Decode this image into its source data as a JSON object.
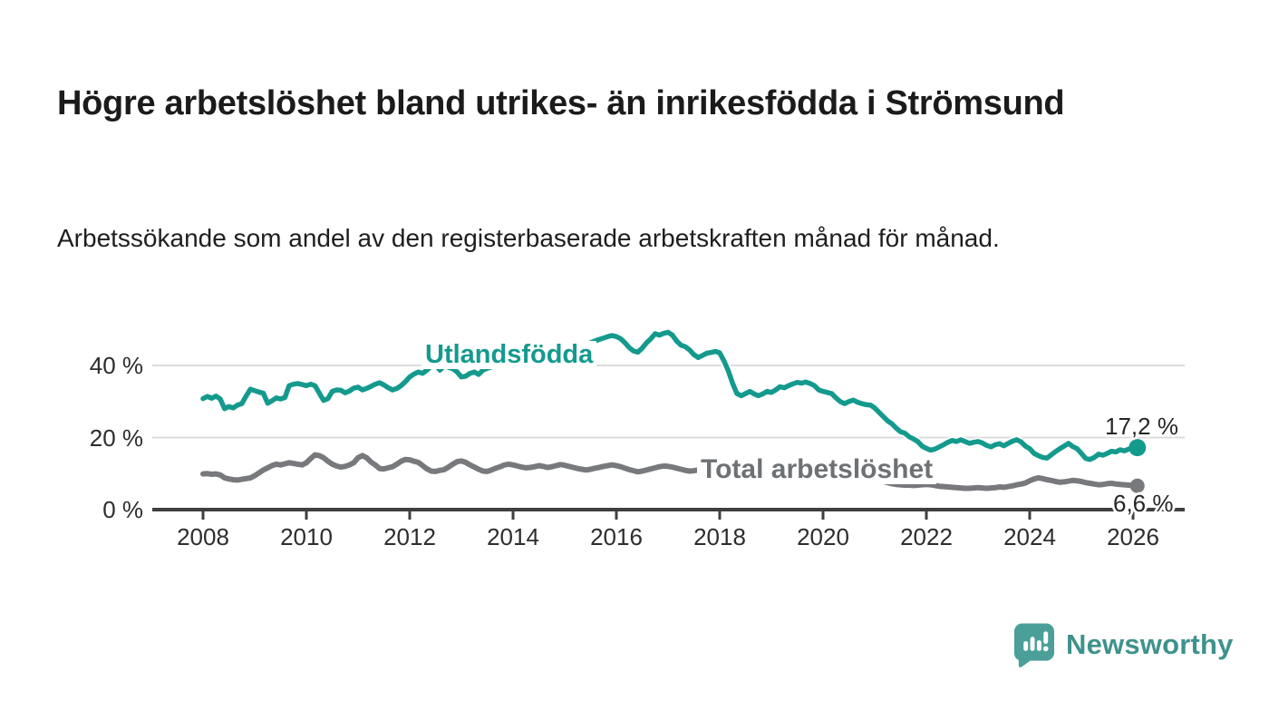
{
  "header": {
    "title": "Högre arbetslöshet bland utrikes- än inrikesfödda i Strömsund",
    "subtitle": "Arbetssökande som andel av den registerbaserade arbetskraften månad för månad."
  },
  "footer": {
    "brand": "Newsworthy",
    "logo_icon": "bar-chart-speech-bubble",
    "logo_color": "#4b9f99"
  },
  "chart_data": {
    "type": "line",
    "title": "Högre arbetslöshet bland utrikes- än inrikesfödda i Strömsund",
    "subtitle": "Arbetssökande som andel av den registerbaserade arbetskraften månad för månad.",
    "grid": "horizontal-only",
    "legend_position": "inline-labels",
    "x_start_year": 2008,
    "points_per_year": 12,
    "x_axis_ticks": [
      2008,
      2010,
      2012,
      2014,
      2016,
      2018,
      2020,
      2022,
      2024,
      2026
    ],
    "ylim": [
      0,
      52
    ],
    "y_ticks": [
      {
        "value": 0,
        "label": "0 %"
      },
      {
        "value": 20,
        "label": "20 %"
      },
      {
        "value": 40,
        "label": "40 %"
      }
    ],
    "colors": {
      "grid": "#dcdcdc",
      "axis": "#3f3f3f",
      "text": "#2d2d2d"
    },
    "annotations": {
      "foreign_end": "17,2 %",
      "total_end": "6,6 %"
    },
    "series": [
      {
        "name": "Utlandsfödda",
        "color": "#149a8d",
        "end_value_label": "17,2 %",
        "values": [
          30.8,
          31.4,
          30.9,
          31.5,
          30.7,
          28.0,
          28.6,
          28.2,
          29.0,
          29.4,
          31.5,
          33.4,
          33.0,
          32.6,
          32.3,
          29.5,
          30.2,
          31.0,
          30.7,
          31.1,
          34.4,
          34.8,
          35.0,
          34.7,
          34.4,
          34.8,
          34.4,
          32.3,
          30.3,
          30.8,
          32.8,
          33.2,
          33.1,
          32.4,
          32.9,
          33.7,
          34.0,
          33.2,
          33.6,
          34.2,
          34.8,
          35.2,
          34.6,
          33.8,
          33.2,
          33.6,
          34.4,
          35.5,
          36.8,
          37.6,
          38.2,
          37.8,
          38.7,
          39.9,
          40.3,
          38.7,
          39.9,
          39.5,
          39.1,
          38.2,
          36.8,
          37.0,
          37.8,
          38.2,
          37.5,
          38.7,
          39.2,
          39.6,
          39.9,
          40.2,
          39.8,
          40.4,
          40.8,
          41.2,
          41.0,
          41.5,
          42.0,
          42.4,
          42.1,
          42.6,
          43.0,
          43.4,
          43.1,
          43.7,
          44.2,
          44.6,
          45.0,
          44.7,
          45.3,
          45.8,
          46.3,
          46.8,
          47.2,
          47.6,
          48.0,
          48.3,
          48.0,
          47.4,
          46.3,
          44.9,
          44.0,
          43.7,
          44.8,
          46.3,
          47.4,
          48.8,
          48.4,
          48.9,
          49.2,
          48.4,
          46.8,
          45.6,
          45.2,
          44.3,
          43.0,
          42.2,
          42.8,
          43.4,
          43.6,
          43.9,
          43.5,
          41.2,
          38.5,
          35.0,
          32.2,
          31.6,
          32.2,
          32.8,
          32.1,
          31.6,
          32.1,
          32.8,
          32.5,
          33.2,
          34.1,
          33.8,
          34.4,
          34.9,
          35.3,
          35.1,
          35.4,
          35.0,
          34.4,
          33.2,
          32.8,
          32.5,
          32.2,
          31.0,
          30.0,
          29.4,
          30.0,
          30.4,
          29.8,
          29.4,
          29.1,
          29.0,
          28.2,
          27.0,
          25.8,
          24.6,
          23.8,
          22.6,
          21.6,
          21.2,
          20.2,
          19.6,
          18.9,
          17.6,
          17.0,
          16.5,
          16.8,
          17.4,
          18.0,
          18.7,
          19.2,
          18.9,
          19.4,
          18.9,
          18.4,
          18.7,
          18.9,
          18.5,
          17.8,
          17.4,
          18.0,
          18.3,
          17.7,
          18.4,
          19.0,
          19.4,
          18.8,
          17.6,
          16.9,
          15.6,
          15.0,
          14.5,
          14.3,
          15.2,
          16.1,
          16.9,
          17.6,
          18.4,
          17.5,
          16.9,
          15.6,
          14.2,
          13.9,
          14.5,
          15.4,
          15.1,
          15.6,
          16.2,
          16.0,
          16.6,
          16.3,
          16.8,
          17.0,
          17.2
        ]
      },
      {
        "name": "Total arbetslöshet",
        "color": "#77797c",
        "end_value_label": "6,6 %",
        "values": [
          9.9,
          10.0,
          9.8,
          9.9,
          9.6,
          8.8,
          8.5,
          8.3,
          8.2,
          8.4,
          8.6,
          8.8,
          9.4,
          10.2,
          11.0,
          11.6,
          12.2,
          12.6,
          12.4,
          12.7,
          13.0,
          12.8,
          12.6,
          12.4,
          13.0,
          14.2,
          15.2,
          15.0,
          14.4,
          13.4,
          12.6,
          12.1,
          11.8,
          12.0,
          12.4,
          13.0,
          14.4,
          15.0,
          14.4,
          13.2,
          12.4,
          11.4,
          11.3,
          11.6,
          11.9,
          12.6,
          13.4,
          13.9,
          13.8,
          13.4,
          13.1,
          12.2,
          11.3,
          10.7,
          10.6,
          10.9,
          11.1,
          11.8,
          12.6,
          13.3,
          13.5,
          13.1,
          12.4,
          11.8,
          11.2,
          10.7,
          10.6,
          11.0,
          11.5,
          11.9,
          12.4,
          12.6,
          12.4,
          12.1,
          11.8,
          11.6,
          11.7,
          11.9,
          12.2,
          12.0,
          11.7,
          11.9,
          12.2,
          12.5,
          12.3,
          12.0,
          11.7,
          11.4,
          11.2,
          11.0,
          11.2,
          11.5,
          11.7,
          12.0,
          12.2,
          12.4,
          12.2,
          11.9,
          11.5,
          11.1,
          10.8,
          10.5,
          10.7,
          11.0,
          11.3,
          11.6,
          11.9,
          12.1,
          12.0,
          11.8,
          11.5,
          11.2,
          10.9,
          10.7,
          10.8,
          11.0,
          11.3,
          11.1,
          10.8,
          10.6,
          10.4,
          10.1,
          9.8,
          9.6,
          9.4,
          9.2,
          9.3,
          9.5,
          9.3,
          9.1,
          9.0,
          9.1,
          9.2,
          9.4,
          9.6,
          9.5,
          9.3,
          9.2,
          9.4,
          9.6,
          9.5,
          9.7,
          9.8,
          10.0,
          10.3,
          10.6,
          11.0,
          11.3,
          11.1,
          10.8,
          10.5,
          10.2,
          9.9,
          9.6,
          9.3,
          9.0,
          8.6,
          8.2,
          7.8,
          7.5,
          7.2,
          7.0,
          6.9,
          6.8,
          6.8,
          6.7,
          6.8,
          6.9,
          7.0,
          6.9,
          6.7,
          6.5,
          6.4,
          6.3,
          6.2,
          6.1,
          6.0,
          5.9,
          5.9,
          6.0,
          6.1,
          6.0,
          5.9,
          6.0,
          6.1,
          6.3,
          6.2,
          6.4,
          6.6,
          6.9,
          7.1,
          7.4,
          8.0,
          8.5,
          8.8,
          8.6,
          8.3,
          8.1,
          7.8,
          7.6,
          7.7,
          7.9,
          8.1,
          8.0,
          7.8,
          7.5,
          7.3,
          7.1,
          6.9,
          7.0,
          7.2,
          7.3,
          7.1,
          7.0,
          6.9,
          6.8,
          6.7,
          6.6
        ]
      }
    ]
  }
}
